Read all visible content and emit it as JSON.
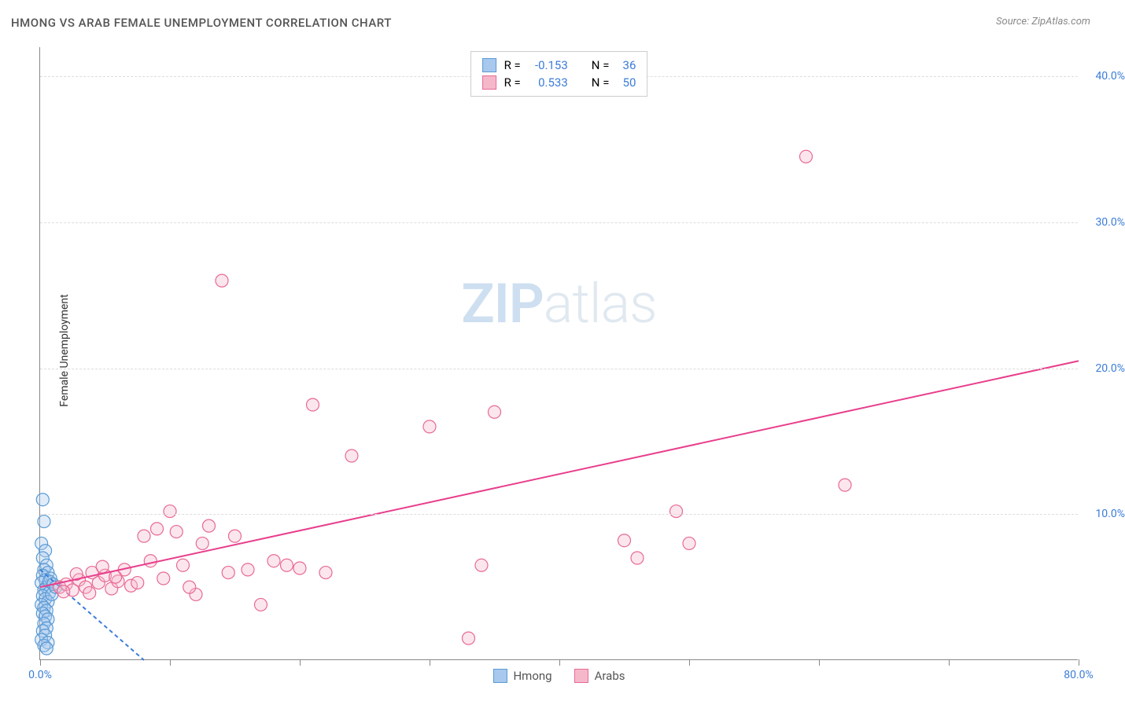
{
  "title": "HMONG VS ARAB FEMALE UNEMPLOYMENT CORRELATION CHART",
  "source": "Source: ZipAtlas.com",
  "y_axis_label": "Female Unemployment",
  "watermark_bold": "ZIP",
  "watermark_rest": "atlas",
  "chart": {
    "type": "scatter",
    "background_color": "#ffffff",
    "grid_color": "#dddddd",
    "axis_color": "#888888",
    "xlim": [
      0,
      80
    ],
    "ylim": [
      0,
      42
    ],
    "x_ticks": [
      0,
      10,
      20,
      30,
      40,
      50,
      60,
      70,
      80
    ],
    "x_tick_labels_shown": {
      "0": "0.0%",
      "80": "80.0%"
    },
    "y_ticks": [
      10,
      20,
      30,
      40
    ],
    "y_tick_labels": [
      "10.0%",
      "20.0%",
      "30.0%",
      "40.0%"
    ],
    "x_label_color": "#3b7dd8",
    "y_label_color": "#3b7dd8",
    "marker_radius": 8,
    "marker_opacity": 0.35,
    "trendline_width": 2
  },
  "series": [
    {
      "key": "hmong",
      "label": "Hmong",
      "R_label": "R =",
      "R": "-0.153",
      "N_label": "N =",
      "N": "36",
      "fill": "#a8c8ed",
      "stroke": "#5a9bd5",
      "trend_color": "#3b7dd8",
      "trend_dashed": true,
      "trend": {
        "x1": 0,
        "y1": 6.2,
        "x2": 8,
        "y2": 0
      },
      "points": [
        [
          0.2,
          11.0
        ],
        [
          0.3,
          9.5
        ],
        [
          0.1,
          8.0
        ],
        [
          0.4,
          7.5
        ],
        [
          0.2,
          7.0
        ],
        [
          0.5,
          6.5
        ],
        [
          0.3,
          6.2
        ],
        [
          0.6,
          6.0
        ],
        [
          0.2,
          5.8
        ],
        [
          0.4,
          5.5
        ],
        [
          0.1,
          5.3
        ],
        [
          0.5,
          5.0
        ],
        [
          0.3,
          4.8
        ],
        [
          0.7,
          4.6
        ],
        [
          0.2,
          4.4
        ],
        [
          0.4,
          4.2
        ],
        [
          0.6,
          4.0
        ],
        [
          0.1,
          3.8
        ],
        [
          0.3,
          3.6
        ],
        [
          0.5,
          3.4
        ],
        [
          0.8,
          5.6
        ],
        [
          0.2,
          3.2
        ],
        [
          0.4,
          3.0
        ],
        [
          0.9,
          4.5
        ],
        [
          0.6,
          2.8
        ],
        [
          0.3,
          2.5
        ],
        [
          0.5,
          2.2
        ],
        [
          0.7,
          5.4
        ],
        [
          0.2,
          2.0
        ],
        [
          0.4,
          1.7
        ],
        [
          0.1,
          1.4
        ],
        [
          0.6,
          1.2
        ],
        [
          0.3,
          1.0
        ],
        [
          0.5,
          0.8
        ],
        [
          1.0,
          5.2
        ],
        [
          1.2,
          5.0
        ]
      ]
    },
    {
      "key": "arabs",
      "label": "Arabs",
      "R_label": "R =",
      "R": "0.533",
      "N_label": "N =",
      "N": "50",
      "fill": "#f5b8ca",
      "stroke": "#e86a94",
      "trend_color": "#e83e8c",
      "trend_dashed": false,
      "trend": {
        "x1": 0,
        "y1": 5.0,
        "x2": 80,
        "y2": 20.5
      },
      "points": [
        [
          1.5,
          5.0
        ],
        [
          2.0,
          5.2
        ],
        [
          2.5,
          4.8
        ],
        [
          3.0,
          5.5
        ],
        [
          3.5,
          5.0
        ],
        [
          4.0,
          6.0
        ],
        [
          4.5,
          5.3
        ],
        [
          5.0,
          5.8
        ],
        [
          5.5,
          4.9
        ],
        [
          6.0,
          5.4
        ],
        [
          6.5,
          6.2
        ],
        [
          7.0,
          5.1
        ],
        [
          8.0,
          8.5
        ],
        [
          9.0,
          9.0
        ],
        [
          9.5,
          5.6
        ],
        [
          10.0,
          10.2
        ],
        [
          10.5,
          8.8
        ],
        [
          11.0,
          6.5
        ],
        [
          12.0,
          4.5
        ],
        [
          12.5,
          8.0
        ],
        [
          13.0,
          9.2
        ],
        [
          14.0,
          26.0
        ],
        [
          14.5,
          6.0
        ],
        [
          15.0,
          8.5
        ],
        [
          16.0,
          6.2
        ],
        [
          17.0,
          3.8
        ],
        [
          18.0,
          6.8
        ],
        [
          19.0,
          6.5
        ],
        [
          20.0,
          6.3
        ],
        [
          21.0,
          17.5
        ],
        [
          22.0,
          6.0
        ],
        [
          24.0,
          14.0
        ],
        [
          30.0,
          16.0
        ],
        [
          33.0,
          1.5
        ],
        [
          34.0,
          6.5
        ],
        [
          35.0,
          17.0
        ],
        [
          45.0,
          8.2
        ],
        [
          46.0,
          7.0
        ],
        [
          49.0,
          10.2
        ],
        [
          50.0,
          8.0
        ],
        [
          59.0,
          34.5
        ],
        [
          62.0,
          12.0
        ],
        [
          1.8,
          4.7
        ],
        [
          2.8,
          5.9
        ],
        [
          3.8,
          4.6
        ],
        [
          4.8,
          6.4
        ],
        [
          5.8,
          5.7
        ],
        [
          7.5,
          5.3
        ],
        [
          8.5,
          6.8
        ],
        [
          11.5,
          5.0
        ]
      ]
    }
  ]
}
